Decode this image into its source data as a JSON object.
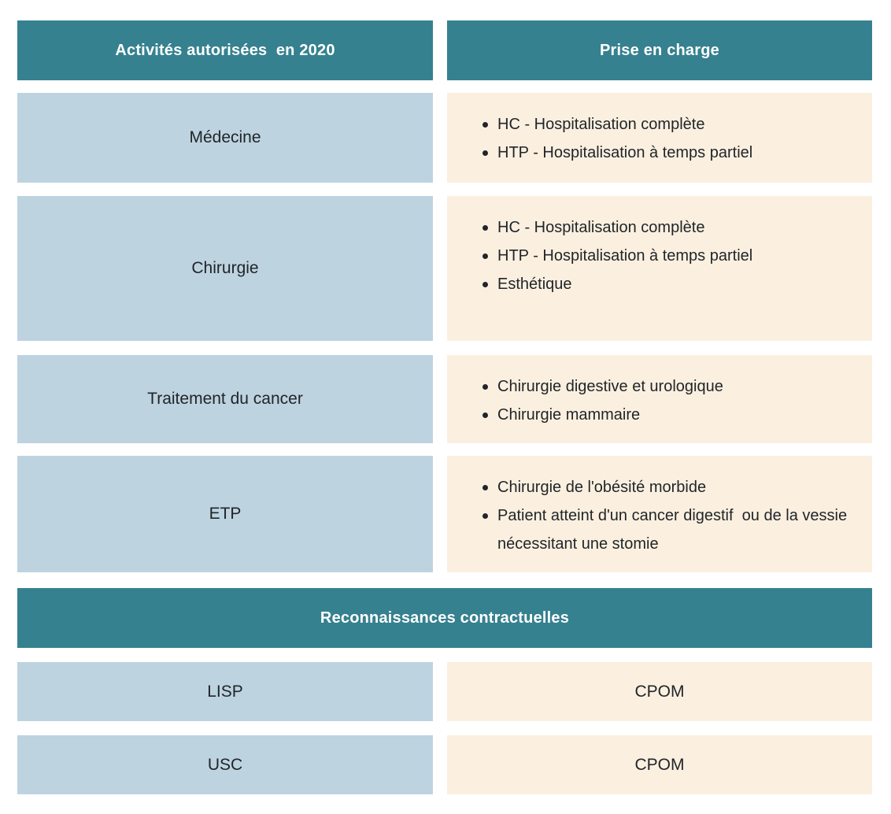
{
  "colors": {
    "teal": "#35818F",
    "light_blue": "#BED3E0",
    "cream": "#FBF0E0",
    "header_text": "#FFFFFF",
    "body_text": "#212529",
    "background": "#FFFFFF"
  },
  "table": {
    "headers": [
      {
        "label": "Activités autorisées  en 2020"
      },
      {
        "label": "Prise en charge"
      }
    ],
    "rows": [
      {
        "activity": "Médecine",
        "items": [
          "HC - Hospitalisation complète",
          "HTP - Hospitalisation à temps partiel"
        ]
      },
      {
        "activity": "Chirurgie",
        "items": [
          "HC - Hospitalisation complète",
          "HTP - Hospitalisation à temps partiel",
          "Esthétique"
        ]
      },
      {
        "activity": "Traitement du cancer",
        "items": [
          "Chirurgie digestive et urologique",
          "Chirurgie mammaire"
        ]
      },
      {
        "activity": "ETP",
        "items": [
          "Chirurgie de l'obésité morbide",
          "Patient atteint d'un cancer digestif  ou de la vessie nécessitant une stomie"
        ]
      }
    ]
  },
  "section_contractual": {
    "header": "Reconnaissances contractuelles",
    "rows": [
      {
        "label": "LISP",
        "value": "CPOM"
      },
      {
        "label": "USC",
        "value": "CPOM"
      }
    ]
  }
}
